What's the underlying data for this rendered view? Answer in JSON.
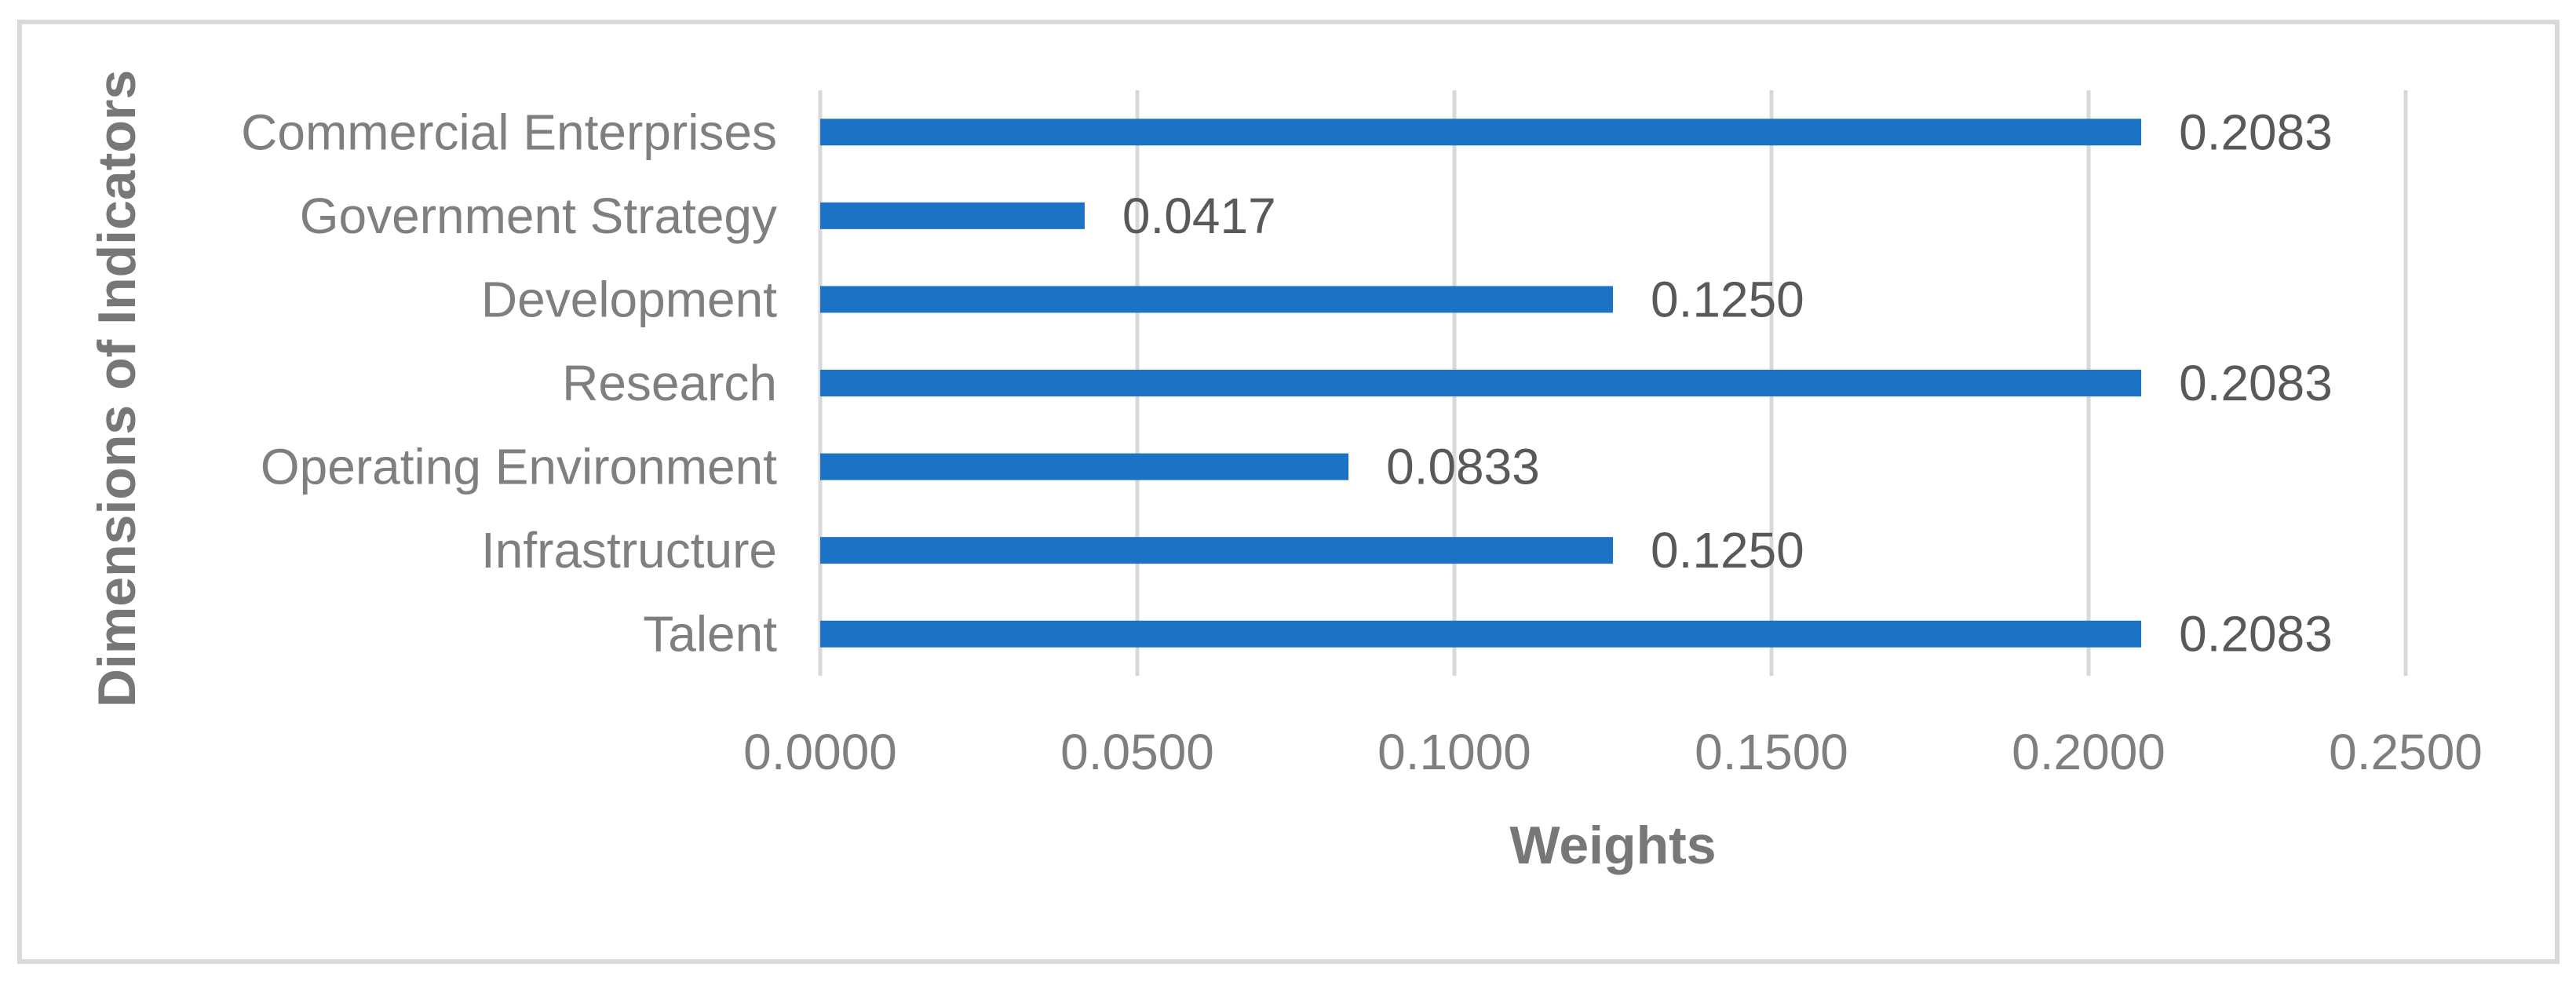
{
  "figure": {
    "background_color": "#FFFFFF",
    "border_color": "#D9D9D9"
  },
  "chart_data": {
    "type": "bar",
    "orientation": "horizontal",
    "title": "",
    "categories": [
      "Commercial Enterprises",
      "Government Strategy",
      "Development",
      "Research",
      "Operating Environment",
      "Infrastructure",
      "Talent"
    ],
    "values": [
      0.2083,
      0.0417,
      0.125,
      0.2083,
      0.0833,
      0.125,
      0.2083
    ],
    "data_labels": [
      "0.2083",
      "0.0417",
      "0.1250",
      "0.2083",
      "0.0833",
      "0.1250",
      "0.2083"
    ],
    "xlabel": "Weights",
    "ylabel": "Dimensions of Indicators",
    "xlim": [
      0,
      0.25
    ],
    "x_tick_values": [
      0.0,
      0.05,
      0.1,
      0.15,
      0.2,
      0.25
    ],
    "x_tick_labels": [
      "0.0000",
      "0.0500",
      "0.1000",
      "0.1500",
      "0.2000",
      "0.2500"
    ],
    "grid": "vertical-only",
    "legend": "none",
    "styles": {
      "bar_color": "#1C72C5",
      "gridline_color": "#D9D9D9",
      "axis_line_color": "#D9D9D9",
      "category_label_color": "#7F7F7F",
      "tick_label_color": "#7F7F7F",
      "data_label_color": "#595959",
      "axis_title_color": "#777777"
    }
  }
}
